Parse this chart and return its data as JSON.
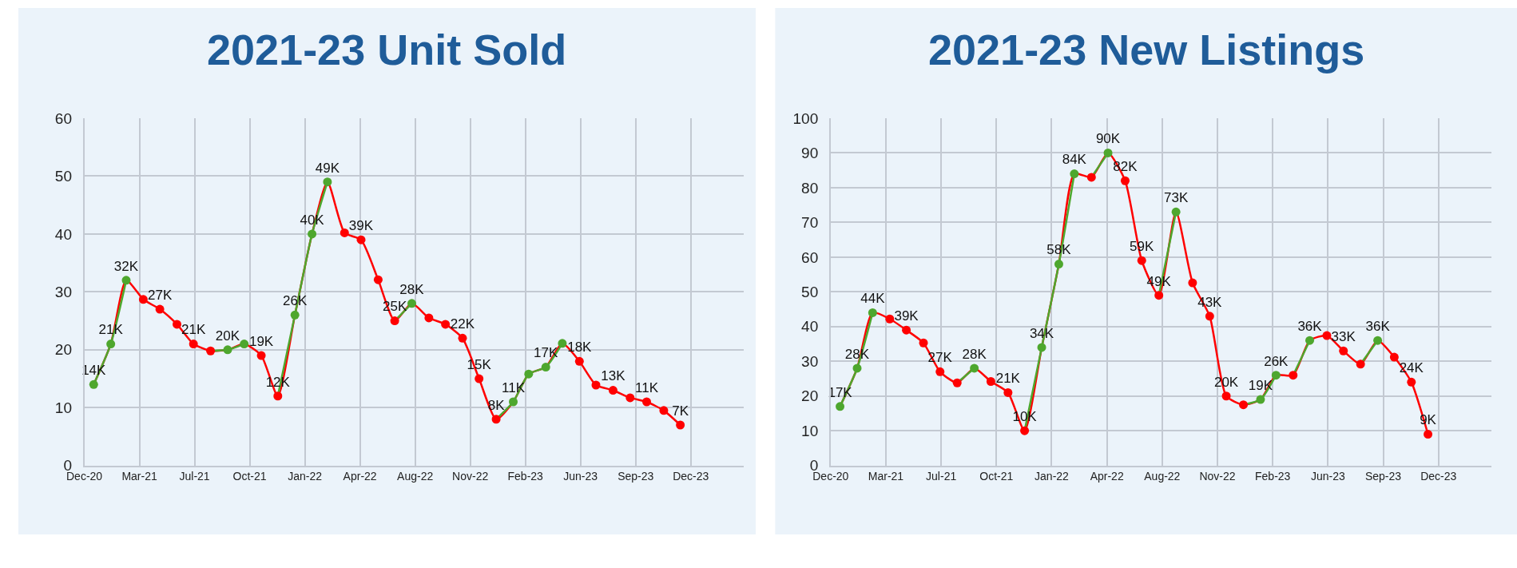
{
  "chart_data": [
    {
      "type": "line",
      "title": "2021-23 Unit Sold",
      "x": [
        "2021-01",
        "2021-02",
        "2021-03",
        "2021-04",
        "2021-05",
        "2021-06",
        "2021-07",
        "2021-08",
        "2021-09",
        "2021-10",
        "2021-11",
        "2021-12",
        "2022-01",
        "2022-02",
        "2022-03",
        "2022-04",
        "2022-05",
        "2022-06",
        "2022-07",
        "2022-08",
        "2022-09",
        "2022-10",
        "2022-11",
        "2022-12",
        "2023-01",
        "2023-02",
        "2023-03",
        "2023-04",
        "2023-05",
        "2023-06",
        "2023-07",
        "2023-08",
        "2023-09",
        "2023-10",
        "2023-11",
        "2023-12"
      ],
      "series": [
        {
          "values": [
            14,
            21,
            32,
            28.7,
            27,
            24.4,
            21,
            19.8,
            20,
            21,
            19,
            12,
            26,
            40,
            49,
            40.2,
            39,
            32.1,
            25,
            28,
            25.5,
            24.4,
            22,
            15,
            8,
            11,
            15.8,
            17,
            21.1,
            18,
            13.9,
            13,
            11.7,
            11,
            9.5,
            7
          ],
          "colors": [
            "#4ea72e",
            "#4ea72e",
            "#4ea72e",
            "#ff0000",
            "#ff0000",
            "#ff0000",
            "#ff0000",
            "#ff0000",
            "#4ea72e",
            "#4ea72e",
            "#ff0000",
            "#ff0000",
            "#4ea72e",
            "#4ea72e",
            "#4ea72e",
            "#ff0000",
            "#ff0000",
            "#ff0000",
            "#ff0000",
            "#4ea72e",
            "#ff0000",
            "#ff0000",
            "#ff0000",
            "#ff0000",
            "#ff0000",
            "#4ea72e",
            "#4ea72e",
            "#4ea72e",
            "#4ea72e",
            "#ff0000",
            "#ff0000",
            "#ff0000",
            "#ff0000",
            "#ff0000",
            "#ff0000",
            "#ff0000"
          ],
          "value_labels": [
            "14K",
            "21K",
            "32K",
            null,
            "27K",
            null,
            "21K",
            null,
            "20K",
            null,
            "19K",
            "12K",
            "26K",
            "40K",
            "49K",
            null,
            "39K",
            null,
            "25K",
            "28K",
            null,
            null,
            "22K",
            "15K",
            "8K",
            "11K",
            null,
            "17K",
            null,
            "18K",
            null,
            "13K",
            null,
            "11K",
            null,
            "7K"
          ]
        }
      ],
      "xlim": [
        "2020-12-15",
        "2024-03-25"
      ],
      "xticks": [
        {
          "value": "2020-12-15",
          "label": "Dec-20"
        },
        {
          "value": "2021-03-25",
          "label": "Mar-21"
        },
        {
          "value": "2021-07-03",
          "label": "Jul-21"
        },
        {
          "value": "2021-10-11",
          "label": "Oct-21"
        },
        {
          "value": "2022-01-19",
          "label": "Jan-22"
        },
        {
          "value": "2022-04-29",
          "label": "Apr-22"
        },
        {
          "value": "2022-08-07",
          "label": "Aug-22"
        },
        {
          "value": "2022-11-15",
          "label": "Nov-22"
        },
        {
          "value": "2023-02-23",
          "label": "Feb-23"
        },
        {
          "value": "2023-06-03",
          "label": "Jun-23"
        },
        {
          "value": "2023-09-11",
          "label": "Sep-23"
        },
        {
          "value": "2023-12-20",
          "label": "Dec-23"
        }
      ],
      "ylim": [
        0,
        60
      ],
      "yticks": [
        0,
        10,
        20,
        30,
        40,
        50,
        60
      ],
      "grid": true,
      "marker": "circle",
      "line_style": "solid"
    },
    {
      "type": "line",
      "title": "2021-23 New Listings",
      "x": [
        "2021-01",
        "2021-02",
        "2021-03",
        "2021-04",
        "2021-05",
        "2021-06",
        "2021-07",
        "2021-08",
        "2021-09",
        "2021-10",
        "2021-11",
        "2021-12",
        "2022-01",
        "2022-02",
        "2022-03",
        "2022-04",
        "2022-05",
        "2022-06",
        "2022-07",
        "2022-08",
        "2022-09",
        "2022-10",
        "2022-11",
        "2022-12",
        "2023-01",
        "2023-02",
        "2023-03",
        "2023-04",
        "2023-05",
        "2023-06",
        "2023-07",
        "2023-08",
        "2023-09",
        "2023-10",
        "2023-11",
        "2023-12"
      ],
      "series": [
        {
          "values": [
            17,
            28,
            44,
            42.2,
            39,
            35.3,
            27,
            23.8,
            28,
            24.2,
            21,
            10,
            34,
            58,
            84,
            83,
            90,
            82,
            59,
            49,
            73,
            52.6,
            43,
            20,
            17.5,
            19,
            26,
            26,
            36,
            37.4,
            33,
            29.2,
            36,
            31.2,
            24,
            9
          ],
          "colors": [
            "#4ea72e",
            "#4ea72e",
            "#4ea72e",
            "#ff0000",
            "#ff0000",
            "#ff0000",
            "#ff0000",
            "#ff0000",
            "#4ea72e",
            "#ff0000",
            "#ff0000",
            "#ff0000",
            "#4ea72e",
            "#4ea72e",
            "#4ea72e",
            "#ff0000",
            "#4ea72e",
            "#ff0000",
            "#ff0000",
            "#ff0000",
            "#4ea72e",
            "#ff0000",
            "#ff0000",
            "#ff0000",
            "#ff0000",
            "#4ea72e",
            "#4ea72e",
            "#ff0000",
            "#4ea72e",
            "#ff0000",
            "#ff0000",
            "#ff0000",
            "#4ea72e",
            "#ff0000",
            "#ff0000",
            "#ff0000"
          ],
          "value_labels": [
            "17K",
            "28K",
            "44K",
            null,
            "39K",
            null,
            "27K",
            null,
            "28K",
            null,
            "21K",
            "10K",
            "34K",
            "58K",
            "84K",
            null,
            "90K",
            "82K",
            "59K",
            "49K",
            "73K",
            null,
            "43K",
            "20K",
            null,
            "19K",
            "26K",
            null,
            "36K",
            null,
            "33K",
            null,
            "36K",
            null,
            "24K",
            "9K"
          ]
        }
      ],
      "xlim": [
        "2020-12-15",
        "2024-03-25"
      ],
      "xticks": [
        {
          "value": "2020-12-15",
          "label": "Dec-20"
        },
        {
          "value": "2021-03-25",
          "label": "Mar-21"
        },
        {
          "value": "2021-07-03",
          "label": "Jul-21"
        },
        {
          "value": "2021-10-11",
          "label": "Oct-21"
        },
        {
          "value": "2022-01-19",
          "label": "Jan-22"
        },
        {
          "value": "2022-04-29",
          "label": "Apr-22"
        },
        {
          "value": "2022-08-07",
          "label": "Aug-22"
        },
        {
          "value": "2022-11-15",
          "label": "Nov-22"
        },
        {
          "value": "2023-02-23",
          "label": "Feb-23"
        },
        {
          "value": "2023-06-03",
          "label": "Jun-23"
        },
        {
          "value": "2023-09-11",
          "label": "Sep-23"
        },
        {
          "value": "2023-12-20",
          "label": "Dec-23"
        }
      ],
      "ylim": [
        0,
        100
      ],
      "yticks": [
        0,
        10,
        20,
        30,
        40,
        50,
        60,
        70,
        80,
        90,
        100
      ],
      "grid": true,
      "marker": "circle",
      "line_style": "solid"
    }
  ]
}
